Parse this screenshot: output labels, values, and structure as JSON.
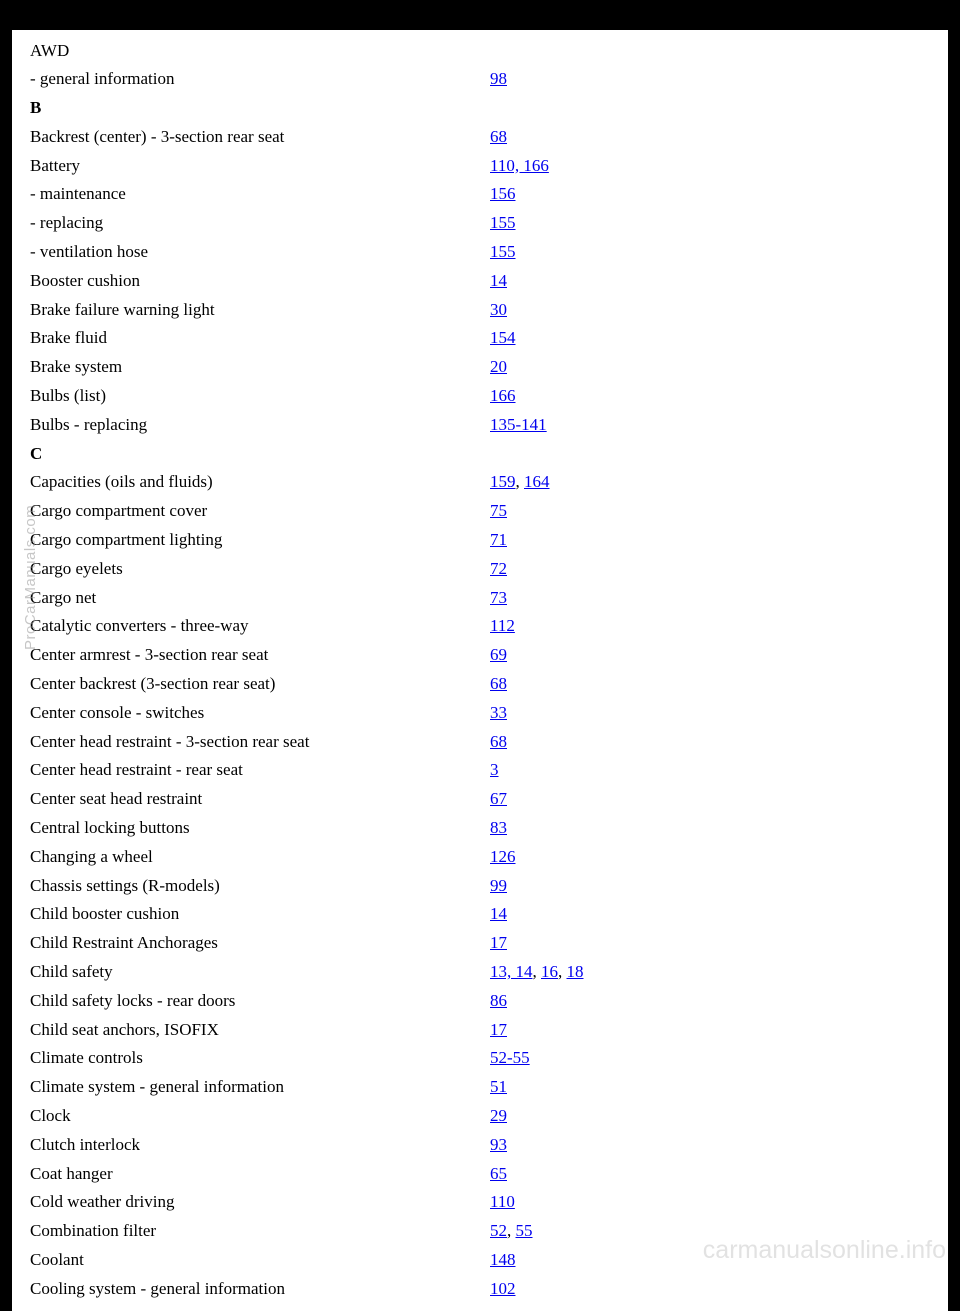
{
  "watermarks": {
    "side": "ProCarManuals.com",
    "bottom": "carmanualsonline.info"
  },
  "colors": {
    "link": "#0000ee",
    "text": "#000000",
    "page_bg": "#ffffff",
    "outer_bg": "#000000"
  },
  "index": [
    {
      "term": "AWD",
      "pages": []
    },
    {
      "term": "- general information",
      "pages": [
        {
          "text": "98"
        }
      ]
    },
    {
      "term": "B",
      "header": true
    },
    {
      "term": "Backrest (center) - 3-section rear seat",
      "pages": [
        {
          "text": "68"
        }
      ]
    },
    {
      "term": "Battery",
      "pages": [
        {
          "text": "110, 166"
        }
      ]
    },
    {
      "term": "- maintenance",
      "pages": [
        {
          "text": "156"
        }
      ]
    },
    {
      "term": "- replacing",
      "pages": [
        {
          "text": "155"
        }
      ]
    },
    {
      "term": "- ventilation hose",
      "pages": [
        {
          "text": "155"
        }
      ]
    },
    {
      "term": "Booster cushion",
      "pages": [
        {
          "text": "14"
        }
      ]
    },
    {
      "term": "Brake failure warning light",
      "pages": [
        {
          "text": "30"
        }
      ]
    },
    {
      "term": "Brake fluid",
      "pages": [
        {
          "text": "154"
        }
      ]
    },
    {
      "term": "Brake system",
      "pages": [
        {
          "text": "20"
        }
      ]
    },
    {
      "term": "Bulbs (list)",
      "pages": [
        {
          "text": "166"
        }
      ]
    },
    {
      "term": "Bulbs - replacing",
      "pages": [
        {
          "text": "135-141"
        }
      ]
    },
    {
      "term": "C",
      "header": true
    },
    {
      "term": "Capacities (oils and fluids)",
      "pages": [
        {
          "text": "159"
        },
        {
          "sep": ", "
        },
        {
          "text": "164"
        }
      ]
    },
    {
      "term": "Cargo compartment cover",
      "pages": [
        {
          "text": "75"
        }
      ]
    },
    {
      "term": "Cargo compartment lighting",
      "pages": [
        {
          "text": "71"
        }
      ]
    },
    {
      "term": "Cargo eyelets",
      "pages": [
        {
          "text": "72"
        }
      ]
    },
    {
      "term": "Cargo net",
      "pages": [
        {
          "text": "73"
        }
      ]
    },
    {
      "term": "Catalytic converters - three-way",
      "pages": [
        {
          "text": "112"
        }
      ]
    },
    {
      "term": "Center armrest - 3-section rear seat",
      "pages": [
        {
          "text": "69"
        }
      ]
    },
    {
      "term": "Center backrest (3-section rear seat)",
      "pages": [
        {
          "text": "68"
        }
      ]
    },
    {
      "term": "Center console - switches",
      "pages": [
        {
          "text": "33"
        }
      ]
    },
    {
      "term": "Center head restraint - 3-section rear seat",
      "pages": [
        {
          "text": "68"
        }
      ]
    },
    {
      "term": "Center head restraint - rear seat",
      "pages": [
        {
          "text": "3"
        }
      ]
    },
    {
      "term": "Center seat head restraint",
      "pages": [
        {
          "text": "67"
        }
      ]
    },
    {
      "term": "Central locking buttons",
      "pages": [
        {
          "text": "83"
        }
      ]
    },
    {
      "term": "Changing a wheel",
      "pages": [
        {
          "text": "126"
        }
      ]
    },
    {
      "term": "Chassis settings (R-models)",
      "pages": [
        {
          "text": "99"
        }
      ]
    },
    {
      "term": "Child booster cushion",
      "pages": [
        {
          "text": "14"
        }
      ]
    },
    {
      "term": "Child Restraint Anchorages",
      "pages": [
        {
          "text": "17"
        }
      ]
    },
    {
      "term": "Child safety",
      "pages": [
        {
          "text": "13, 14"
        },
        {
          "sep": ", "
        },
        {
          "text": "16"
        },
        {
          "sep": ", "
        },
        {
          "text": "18"
        }
      ]
    },
    {
      "term": "Child safety locks - rear doors",
      "pages": [
        {
          "text": "86"
        }
      ]
    },
    {
      "term": "Child seat anchors, ISOFIX",
      "pages": [
        {
          "text": "17"
        }
      ]
    },
    {
      "term": "Climate controls",
      "pages": [
        {
          "text": "52-55"
        }
      ]
    },
    {
      "term": "Climate system - general information",
      "pages": [
        {
          "text": "51"
        }
      ]
    },
    {
      "term": "Clock",
      "pages": [
        {
          "text": "29"
        }
      ]
    },
    {
      "term": "Clutch interlock",
      "pages": [
        {
          "text": "93"
        }
      ]
    },
    {
      "term": "Coat hanger",
      "pages": [
        {
          "text": "65"
        }
      ]
    },
    {
      "term": "Cold weather driving",
      "pages": [
        {
          "text": "110"
        }
      ]
    },
    {
      "term": "Combination filter",
      "pages": [
        {
          "text": "52"
        },
        {
          "sep": ", "
        },
        {
          "text": "55"
        }
      ]
    },
    {
      "term": "Coolant",
      "pages": [
        {
          "text": "148"
        }
      ]
    },
    {
      "term": "Cooling system - general information",
      "pages": [
        {
          "text": "102"
        }
      ]
    }
  ]
}
